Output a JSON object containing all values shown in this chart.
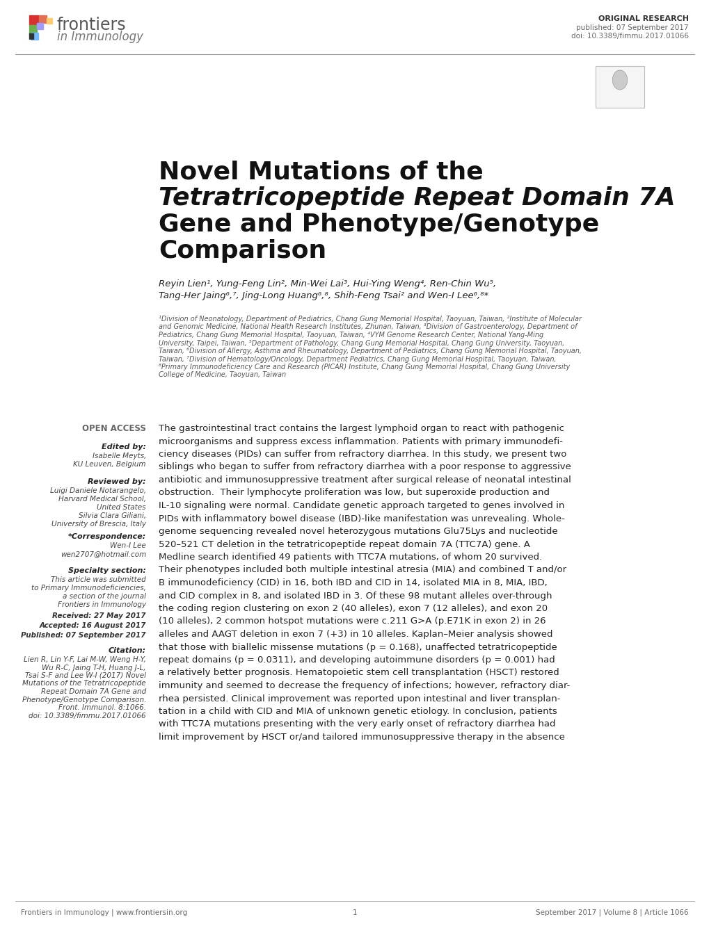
{
  "background_color": "#ffffff",
  "header": {
    "article_type": "ORIGINAL RESEARCH",
    "published": "published: 07 September 2017",
    "doi": "doi: 10.3389/fimmu.2017.01066"
  },
  "title_line1": "Novel Mutations of the",
  "title_line2": "Tetratricopeptide Repeat Domain 7A",
  "title_line3": "Gene and Phenotype/Genotype",
  "title_line4": "Comparison",
  "authors_line1": "Reyin Lien¹, Yung-Feng Lin², Min-Wei Lai³, Hui-Ying Weng⁴, Ren-Chin Wu⁵,",
  "authors_line2": "Tang-Her Jaing⁶,⁷, Jing-Long Huang⁶,⁸, Shih-Feng Tsai² and Wen-I Lee⁶,⁸*",
  "aff_lines": [
    "¹Division of Neonatology, Department of Pediatrics, Chang Gung Memorial Hospital, Taoyuan, Taiwan, ²Institute of Molecular",
    "and Genomic Medicine, National Health Research Institutes, Zhunan, Taiwan, ³Division of Gastroenterology, Department of",
    "Pediatrics, Chang Gung Memorial Hospital, Taoyuan, Taiwan, ⁴VYM Genome Research Center, National Yang-Ming",
    "University, Taipei, Taiwan, ⁵Department of Pathology, Chang Gung Memorial Hospital, Chang Gung University, Taoyuan,",
    "Taiwan, ⁶Division of Allergy, Asthma and Rheumatology, Department of Pediatrics, Chang Gung Memorial Hospital, Taoyuan,",
    "Taiwan, ⁷Division of Hematology/Oncology, Department Pediatrics, Chang Gung Memorial Hospital, Taoyuan, Taiwan,",
    "⁸Primary Immunodeficiency Care and Research (PICAR) Institute, Chang Gung Memorial Hospital, Chang Gung University",
    "College of Medicine, Taoyuan, Taiwan"
  ],
  "open_access": "OPEN ACCESS",
  "edited_by_label": "Edited by:",
  "edited_by_lines": [
    "Isabelle Meyts,",
    "KU Leuven, Belgium"
  ],
  "reviewed_by_label": "Reviewed by:",
  "reviewed_by_lines": [
    "Luigi Daniele Notarangelo,",
    "Harvard Medical School,",
    "United States",
    "Silvia Clara Giliani,",
    "University of Brescia, Italy"
  ],
  "correspondence_label": "*Correspondence:",
  "correspondence_lines": [
    "Wen-I Lee",
    "wen2707@hotmail.com"
  ],
  "specialty_label": "Specialty section:",
  "specialty_lines": [
    "This article was submitted",
    "to Primary Immunodeficiencies,",
    "a section of the journal",
    "Frontiers in Immunology"
  ],
  "received_label": "Received:",
  "received_date": "27 May 2017",
  "accepted_label": "Accepted:",
  "accepted_date": "16 August 2017",
  "published_label": "Published:",
  "published_date": "07 September 2017",
  "citation_label": "Citation:",
  "citation_lines": [
    "Lien R, Lin Y-F, Lai M-W, Weng H-Y,",
    "Wu R-C, Jaing T-H, Huang J-L,",
    "Tsai S-F and Lee W-I (2017) Novel",
    "Mutations of the Tetratricopeptide",
    "Repeat Domain 7A Gene and",
    "Phenotype/Genotype Comparison.",
    "Front. Immunol. 8:1066.",
    "doi: 10.3389/fimmu.2017.01066"
  ],
  "abstract_lines": [
    "The gastrointestinal tract contains the largest lymphoid organ to react with pathogenic",
    "microorganisms and suppress excess inflammation. Patients with primary immunodefi-",
    "ciency diseases (PIDs) can suffer from refractory diarrhea. In this study, we present two",
    "siblings who began to suffer from refractory diarrhea with a poor response to aggressive",
    "antibiotic and immunosuppressive treatment after surgical release of neonatal intestinal",
    "obstruction.  Their lymphocyte proliferation was low, but superoxide production and",
    "IL-10 signaling were normal. Candidate genetic approach targeted to genes involved in",
    "PIDs with inflammatory bowel disease (IBD)-like manifestation was unrevealing. Whole-",
    "genome sequencing revealed novel heterozygous mutations Glu75Lys and nucleotide",
    "520–521 CT deletion in the tetratricopeptide repeat domain 7A (TTC7A) gene. A",
    "Medline search identified 49 patients with TTC7A mutations, of whom 20 survived.",
    "Their phenotypes included both multiple intestinal atresia (MIA) and combined T and/or",
    "B immunodeficiency (CID) in 16, both IBD and CID in 14, isolated MIA in 8, MIA, IBD,",
    "and CID complex in 8, and isolated IBD in 3. Of these 98 mutant alleles over-through",
    "the coding region clustering on exon 2 (40 alleles), exon 7 (12 alleles), and exon 20",
    "(10 alleles), 2 common hotspot mutations were c.211 G>A (p.E71K in exon 2) in 26",
    "alleles and AAGT deletion in exon 7 (+3) in 10 alleles. Kaplan–Meier analysis showed",
    "that those with biallelic missense mutations (p = 0.168), unaffected tetratricopeptide",
    "repeat domains (p = 0.0311), and developing autoimmune disorders (p = 0.001) had",
    "a relatively better prognosis. Hematopoietic stem cell transplantation (HSCT) restored",
    "immunity and seemed to decrease the frequency of infections; however, refractory diar-",
    "rhea persisted. Clinical improvement was reported upon intestinal and liver transplan-",
    "tation in a child with CID and MIA of unknown genetic etiology. In conclusion, patients",
    "with TTC7A mutations presenting with the very early onset of refractory diarrhea had",
    "limit improvement by HSCT or/and tailored immunosuppressive therapy in the absence"
  ],
  "footer_left": "Frontiers in Immunology | www.frontiersin.org",
  "footer_center": "1",
  "footer_right": "September 2017 | Volume 8 | Article 1066"
}
